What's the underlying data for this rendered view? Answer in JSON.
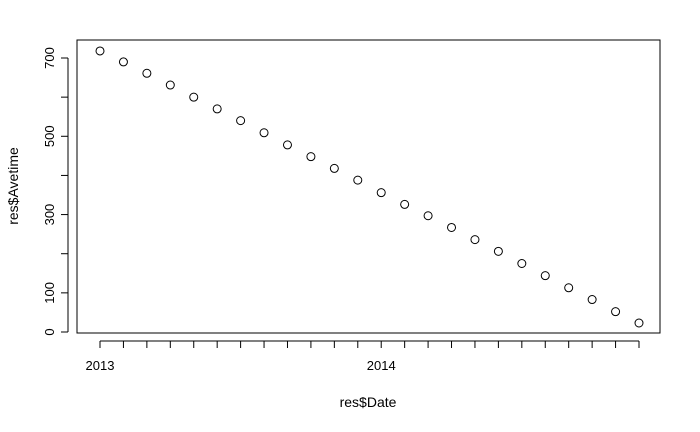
{
  "chart_data": {
    "type": "scatter",
    "title": "",
    "xlabel": "res$Date",
    "ylabel": "res$Avetime",
    "x": [
      "2013-01-01",
      "2013-02-01",
      "2013-03-01",
      "2013-04-01",
      "2013-05-01",
      "2013-06-01",
      "2013-07-01",
      "2013-08-01",
      "2013-09-01",
      "2013-10-01",
      "2013-11-01",
      "2013-12-01",
      "2014-01-01",
      "2014-02-01",
      "2014-03-01",
      "2014-04-01",
      "2014-05-01",
      "2014-06-01",
      "2014-07-01",
      "2014-08-01",
      "2014-09-01",
      "2014-10-01",
      "2014-11-01",
      "2014-12-01"
    ],
    "y": [
      718,
      690,
      661,
      631,
      600,
      570,
      540,
      509,
      478,
      448,
      418,
      388,
      356,
      326,
      297,
      267,
      236,
      206,
      175,
      144,
      113,
      83,
      52,
      23
    ],
    "x_tick_labels": [
      "2013",
      "2014"
    ],
    "y_tick_labels": [
      "0",
      "100",
      "300",
      "500",
      "700"
    ],
    "y_minor_ticks": [
      200,
      400,
      600
    ],
    "ylim": [
      0,
      700
    ],
    "grid": false,
    "marker": "open-circle"
  }
}
